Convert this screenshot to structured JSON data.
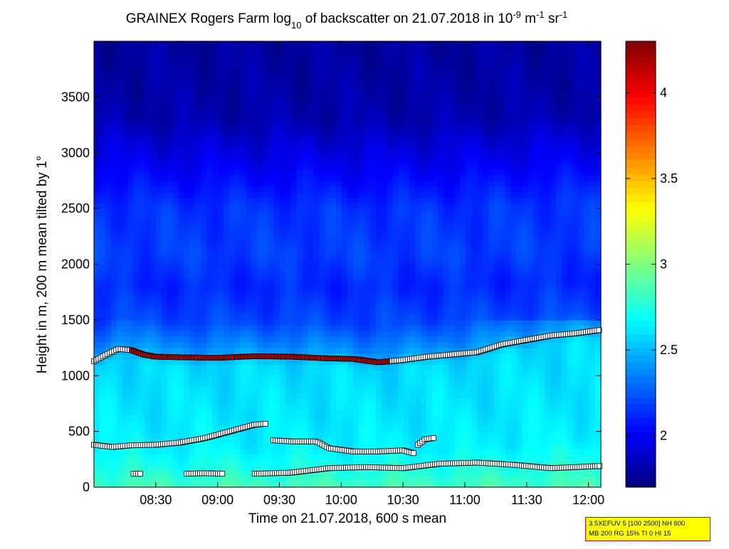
{
  "chart_data": {
    "type": "heatmap",
    "title": {
      "parts": [
        {
          "t": "GRAINEX Rogers Farm log",
          "s": "n"
        },
        {
          "t": "10",
          "s": "sub"
        },
        {
          "t": " of backscatter on 21.07.2018 in 10",
          "s": "n"
        },
        {
          "t": "-9",
          "s": "sup"
        },
        {
          "t": " m",
          "s": "n"
        },
        {
          "t": "-1",
          "s": "sup"
        },
        {
          "t": " sr",
          "s": "n"
        },
        {
          "t": "-1",
          "s": "sup"
        }
      ]
    },
    "xlabel": "Time on 21.07.2018, 600 s mean",
    "ylabel": "Height in m, 200 m mean tilted by 1°",
    "x_range_hours": [
      8.0,
      12.1
    ],
    "y_range": [
      0,
      4000
    ],
    "x_ticks": [
      {
        "v": 8.5,
        "label": "08:30"
      },
      {
        "v": 9.0,
        "label": "09:00"
      },
      {
        "v": 9.5,
        "label": "09:30"
      },
      {
        "v": 10.0,
        "label": "10:00"
      },
      {
        "v": 10.5,
        "label": "10:30"
      },
      {
        "v": 11.0,
        "label": "11:00"
      },
      {
        "v": 11.5,
        "label": "11:30"
      },
      {
        "v": 12.0,
        "label": "12:00"
      }
    ],
    "y_ticks": [
      {
        "v": 0,
        "label": "0"
      },
      {
        "v": 500,
        "label": "500"
      },
      {
        "v": 1000,
        "label": "1000"
      },
      {
        "v": 1500,
        "label": "1500"
      },
      {
        "v": 2000,
        "label": "2000"
      },
      {
        "v": 2500,
        "label": "2500"
      },
      {
        "v": 3000,
        "label": "3000"
      },
      {
        "v": 3500,
        "label": "3500"
      }
    ],
    "colorbar": {
      "range": [
        1.7,
        4.3
      ],
      "ticks": [
        {
          "v": 2.0,
          "label": "2"
        },
        {
          "v": 2.5,
          "label": "2.5"
        },
        {
          "v": 3.0,
          "label": "3"
        },
        {
          "v": 3.5,
          "label": "3.5"
        },
        {
          "v": 4.0,
          "label": "4"
        }
      ],
      "colormap": "jet"
    },
    "field_profile": {
      "heights": [
        0,
        150,
        350,
        600,
        900,
        1100,
        1250,
        1500,
        1800,
        2100,
        2500,
        3000,
        3300,
        3600,
        4000
      ],
      "values": [
        2.85,
        2.75,
        2.65,
        2.62,
        2.6,
        2.58,
        2.4,
        2.2,
        2.12,
        2.18,
        2.15,
        1.95,
        1.82,
        1.8,
        1.78
      ]
    },
    "cloud_top_series": {
      "name": "boundary layer top",
      "x": [
        8.0,
        8.1,
        8.2,
        8.3,
        8.4,
        8.5,
        8.7,
        9.0,
        9.3,
        9.6,
        9.9,
        10.1,
        10.3,
        10.5,
        10.7,
        10.9,
        11.1,
        11.3,
        11.5,
        11.7,
        11.9,
        12.1
      ],
      "y": [
        1130,
        1190,
        1240,
        1230,
        1190,
        1170,
        1165,
        1160,
        1175,
        1170,
        1155,
        1150,
        1120,
        1140,
        1170,
        1190,
        1210,
        1280,
        1320,
        1360,
        1380,
        1410
      ]
    },
    "mid_layer_series": {
      "name": "mid layer",
      "segments": [
        {
          "x": [
            8.0,
            8.15,
            8.3,
            8.5,
            8.7,
            8.9,
            9.1,
            9.3,
            9.4
          ],
          "y": [
            380,
            360,
            375,
            380,
            400,
            440,
            500,
            560,
            570
          ]
        },
        {
          "x": [
            9.45,
            9.6,
            9.8,
            9.9,
            10.1,
            10.3,
            10.5,
            10.6
          ],
          "y": [
            420,
            410,
            410,
            350,
            320,
            320,
            330,
            300
          ]
        },
        {
          "x": [
            10.62,
            10.68,
            10.75
          ],
          "y": [
            380,
            430,
            440
          ]
        }
      ]
    },
    "low_layer_series": {
      "name": "low layer",
      "segments": [
        {
          "x": [
            8.32,
            8.38
          ],
          "y": [
            120,
            120
          ]
        },
        {
          "x": [
            8.75,
            8.9,
            9.05
          ],
          "y": [
            120,
            125,
            120
          ]
        },
        {
          "x": [
            9.3,
            9.6,
            9.9,
            10.2,
            10.5,
            10.8,
            11.1,
            11.4,
            11.7,
            11.9,
            12.1
          ],
          "y": [
            120,
            130,
            170,
            180,
            170,
            210,
            220,
            200,
            170,
            180,
            190
          ]
        }
      ]
    }
  },
  "info_box": {
    "line1": "3.5XEFUV 5 [100 2500] NH 600",
    "line2": "MB 200 RG 15% TI 0 HI 15"
  }
}
